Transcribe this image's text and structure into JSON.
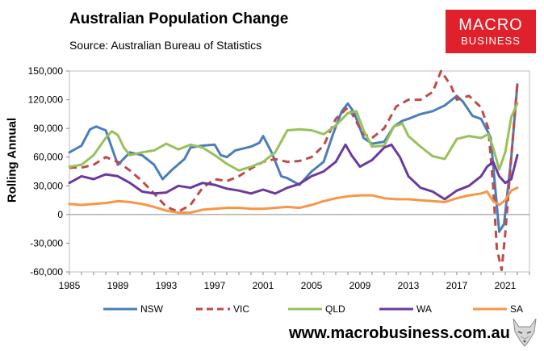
{
  "header": {
    "title": "Australian Population Change",
    "subtitle": "Source: Australian Bureau of Statistics"
  },
  "logo": {
    "line1": "MACRO",
    "line2": "BUSINESS"
  },
  "footer": {
    "website": "www.macrobusiness.com.au"
  },
  "colors": {
    "NSW": "#4a7ebb",
    "VIC": "#be4b48",
    "QLD": "#98c15b",
    "WA": "#6c3a9c",
    "SA": "#f79646",
    "logo_bg": "#e0202a"
  },
  "chart_data": {
    "type": "line",
    "title": "Australian Population Change",
    "ylabel": "Rolling Annual",
    "xlabel": "",
    "ylim": [
      -60000,
      150000
    ],
    "xlim": [
      1985,
      2023
    ],
    "yticks": [
      -60000,
      -30000,
      0,
      30000,
      60000,
      90000,
      120000,
      150000
    ],
    "ytick_labels": [
      "-60,000",
      "-30,000",
      "0",
      "30,000",
      "60,000",
      "90,000",
      "120,000",
      "150,000"
    ],
    "xticks": [
      1985,
      1989,
      1993,
      1997,
      2001,
      2005,
      2009,
      2013,
      2017,
      2021
    ],
    "xtick_labels": [
      "1985",
      "1989",
      "1993",
      "1997",
      "2001",
      "2005",
      "2009",
      "2013",
      "2017",
      "2021"
    ],
    "legend_position": "bottom",
    "series": [
      {
        "name": "NSW",
        "style": "solid",
        "x": [
          1985,
          1986,
          1986.7,
          1987.2,
          1988,
          1988.5,
          1989,
          1990,
          1991,
          1992,
          1992.7,
          1993.5,
          1994.5,
          1995,
          1996,
          1997,
          1997.5,
          1998,
          1998.7,
          2000,
          2000.7,
          2001,
          2001.7,
          2002.5,
          2003,
          2004,
          2005,
          2006,
          2006.8,
          2007.5,
          2008,
          2008.5,
          2009.3,
          2010,
          2011,
          2011.8,
          2012.5,
          2013,
          2014,
          2015,
          2016,
          2017,
          2017.5,
          2018.3,
          2019,
          2019.5,
          2019.8,
          2020,
          2020.5,
          2020.9,
          2021.5,
          2022
        ],
        "y": [
          65000,
          72000,
          89000,
          92000,
          88000,
          70000,
          52000,
          65000,
          62000,
          52000,
          37000,
          47000,
          58000,
          70000,
          72000,
          73000,
          62000,
          60000,
          67000,
          71000,
          75000,
          82000,
          65000,
          40000,
          38000,
          31000,
          45000,
          55000,
          85000,
          108000,
          116000,
          107000,
          80000,
          74000,
          76000,
          92000,
          98000,
          100000,
          105000,
          108000,
          114000,
          124000,
          118000,
          103000,
          100000,
          88000,
          80000,
          52000,
          -18000,
          -10000,
          60000,
          136000
        ]
      },
      {
        "name": "VIC",
        "style": "dashed",
        "x": [
          1985,
          1986,
          1987,
          1988,
          1989,
          1990,
          1991,
          1992,
          1993,
          1994,
          1995,
          1996,
          1997,
          1998,
          1999,
          2000,
          2001,
          2002,
          2003,
          2004,
          2005,
          2006,
          2007,
          2008,
          2008.5,
          2009.2,
          2010,
          2011,
          2012,
          2013,
          2014,
          2015,
          2015.7,
          2016.5,
          2017,
          2018,
          2019,
          2019.6,
          2020,
          2020.3,
          2020.7,
          2021,
          2021.5,
          2022
        ],
        "y": [
          49000,
          49000,
          52000,
          60000,
          55000,
          46000,
          35000,
          22000,
          8000,
          3000,
          10000,
          28000,
          37000,
          35000,
          40000,
          48000,
          55000,
          58000,
          55000,
          56000,
          60000,
          72000,
          100000,
          112000,
          102000,
          85000,
          80000,
          90000,
          113000,
          120000,
          120000,
          128000,
          150000,
          135000,
          120000,
          124000,
          112000,
          90000,
          30000,
          -35000,
          -58000,
          -20000,
          60000,
          138000
        ]
      },
      {
        "name": "QLD",
        "style": "solid",
        "x": [
          1985,
          1986,
          1987,
          1988,
          1988.5,
          1989,
          1989.5,
          1990,
          1991,
          1992,
          1993,
          1994,
          1995,
          1996,
          1997,
          1998,
          1999,
          2000,
          2001,
          2002,
          2003,
          2004,
          2005,
          2006,
          2007,
          2008,
          2008.7,
          2009.3,
          2010,
          2011,
          2011.8,
          2012.5,
          2013,
          2014,
          2015,
          2016,
          2017,
          2018,
          2019,
          2019.6,
          2020,
          2020.5,
          2021,
          2021.5,
          2022
        ],
        "y": [
          50000,
          52000,
          62000,
          80000,
          87000,
          83000,
          70000,
          62000,
          65000,
          67000,
          74000,
          68000,
          73000,
          70000,
          62000,
          53000,
          46000,
          50000,
          55000,
          65000,
          88000,
          89000,
          88000,
          84000,
          93000,
          106000,
          108000,
          88000,
          71000,
          72000,
          92000,
          95000,
          82000,
          71000,
          61000,
          58000,
          79000,
          82000,
          80000,
          84000,
          70000,
          47000,
          65000,
          102000,
          116000
        ]
      },
      {
        "name": "WA",
        "style": "solid",
        "x": [
          1985,
          1986,
          1987,
          1988,
          1989,
          1990,
          1991,
          1992,
          1993,
          1994,
          1995,
          1996,
          1997,
          1998,
          1999,
          2000,
          2001,
          2002,
          2003,
          2004,
          2005,
          2006,
          2007,
          2007.8,
          2008.3,
          2009,
          2010,
          2011,
          2011.6,
          2012.3,
          2013,
          2014,
          2015,
          2016,
          2017,
          2018,
          2019,
          2019.5,
          2020,
          2020.5,
          2021,
          2021.5,
          2022
        ],
        "y": [
          33000,
          40000,
          37000,
          42000,
          40000,
          33000,
          24000,
          22000,
          23000,
          30000,
          28000,
          33000,
          31000,
          27000,
          25000,
          22000,
          26000,
          22000,
          28000,
          32000,
          40000,
          45000,
          55000,
          73000,
          62000,
          50000,
          57000,
          70000,
          73000,
          60000,
          40000,
          28000,
          24000,
          16000,
          25000,
          30000,
          40000,
          50000,
          55000,
          40000,
          33000,
          37000,
          62000
        ]
      },
      {
        "name": "SA",
        "style": "solid",
        "x": [
          1985,
          1986,
          1987,
          1988,
          1989,
          1990,
          1991,
          1992,
          1993,
          1994,
          1995,
          1996,
          1997,
          1998,
          1999,
          2000,
          2001,
          2002,
          2003,
          2004,
          2005,
          2006,
          2007,
          2008,
          2009,
          2010,
          2011,
          2012,
          2013,
          2014,
          2015,
          2016,
          2017,
          2018,
          2019,
          2019.5,
          2020,
          2020.5,
          2021,
          2021.5,
          2022
        ],
        "y": [
          11000,
          10000,
          11000,
          12000,
          14000,
          13000,
          11000,
          8000,
          4000,
          2000,
          2000,
          5000,
          6000,
          7000,
          7000,
          6000,
          6000,
          7000,
          8000,
          7000,
          10000,
          14000,
          17000,
          19000,
          20000,
          20000,
          17000,
          16000,
          16000,
          15000,
          14000,
          13000,
          17000,
          20000,
          22000,
          24000,
          14000,
          10000,
          15000,
          25000,
          28000
        ]
      }
    ]
  }
}
